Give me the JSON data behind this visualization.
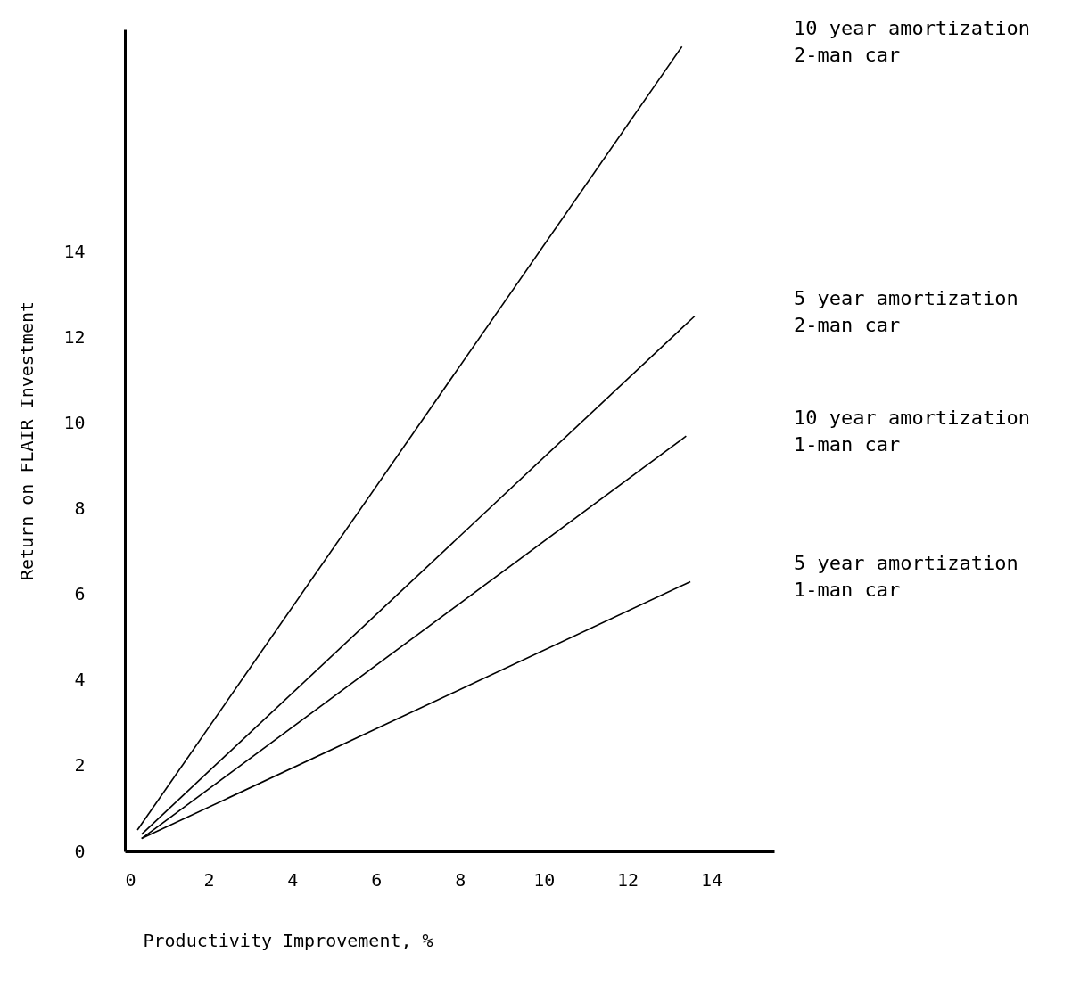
{
  "chart_data": {
    "type": "line",
    "xlabel": "Productivity Improvement, %",
    "ylabel": "Return on FLAIR Investment",
    "xlim": [
      0,
      15.5
    ],
    "ylim": [
      0,
      19.2
    ],
    "xticks": [
      0,
      2,
      4,
      6,
      8,
      10,
      12,
      14
    ],
    "yticks": [
      0,
      2,
      4,
      6,
      8,
      10,
      12,
      14
    ],
    "grid": false,
    "legend": false,
    "marker": "none",
    "line_style": "solid",
    "series": [
      {
        "name": "10 year amortization\n2-man car",
        "color": "#000000",
        "x": [
          0.3,
          13.3
        ],
        "values": [
          0.5,
          18.8
        ]
      },
      {
        "name": "5 year amortization\n2-man car",
        "color": "#000000",
        "x": [
          0.4,
          13.6
        ],
        "values": [
          0.4,
          12.5
        ]
      },
      {
        "name": "10 year amortization\n1-man car",
        "color": "#000000",
        "x": [
          0.4,
          13.4
        ],
        "values": [
          0.3,
          9.7
        ]
      },
      {
        "name": "5 year amortization\n1-man car",
        "color": "#000000",
        "x": [
          0.4,
          13.5
        ],
        "values": [
          0.3,
          6.3
        ]
      }
    ]
  }
}
